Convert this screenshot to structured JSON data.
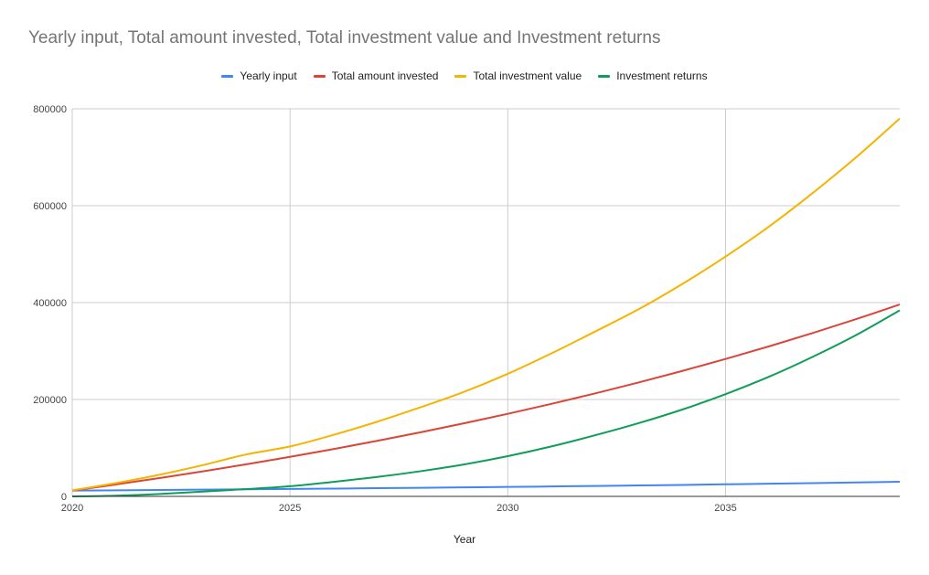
{
  "chart_data": {
    "type": "line",
    "title": "Yearly input, Total amount invested, Total investment value and Investment returns",
    "xlabel": "Year",
    "ylabel": "",
    "xlim": [
      2020,
      2039
    ],
    "ylim": [
      0,
      800000
    ],
    "x_ticks": [
      "2020",
      "2025",
      "2030",
      "2035"
    ],
    "y_ticks": [
      "0",
      "200000",
      "400000",
      "600000",
      "800000"
    ],
    "grid": true,
    "legend_position": "top",
    "x": [
      2020,
      2021,
      2022,
      2023,
      2024,
      2025,
      2026,
      2027,
      2028,
      2029,
      2030,
      2031,
      2032,
      2033,
      2034,
      2035,
      2036,
      2037,
      2038,
      2039
    ],
    "series": [
      {
        "name": "Yearly input",
        "color": "#4285f4",
        "values": [
          12000,
          12600,
          13200,
          13900,
          14600,
          15300,
          16100,
          16900,
          17700,
          18600,
          19500,
          20500,
          21500,
          22600,
          23700,
          24900,
          26100,
          27400,
          28800,
          30300
        ]
      },
      {
        "name": "Total amount invested",
        "color": "#db4437",
        "values": [
          12000,
          24600,
          37800,
          51700,
          66300,
          81600,
          97700,
          114600,
          132300,
          150900,
          170400,
          190900,
          212400,
          235000,
          258700,
          283600,
          309700,
          337100,
          365900,
          396200
        ]
      },
      {
        "name": "Total investment value",
        "color": "#f4b400",
        "values": [
          12600,
          27400,
          44600,
          64500,
          86700,
          103000,
          127000,
          154000,
          184000,
          216000,
          253000,
          295000,
          340000,
          386000,
          438000,
          495000,
          557000,
          626000,
          700000,
          780000
        ]
      },
      {
        "name": "Investment returns",
        "color": "#0f9d58",
        "values": [
          0,
          1500,
          5000,
          10000,
          15000,
          21000,
          30000,
          40000,
          52000,
          66000,
          83000,
          103000,
          126000,
          151000,
          179000,
          211000,
          247000,
          288000,
          333000,
          384000
        ]
      }
    ]
  }
}
